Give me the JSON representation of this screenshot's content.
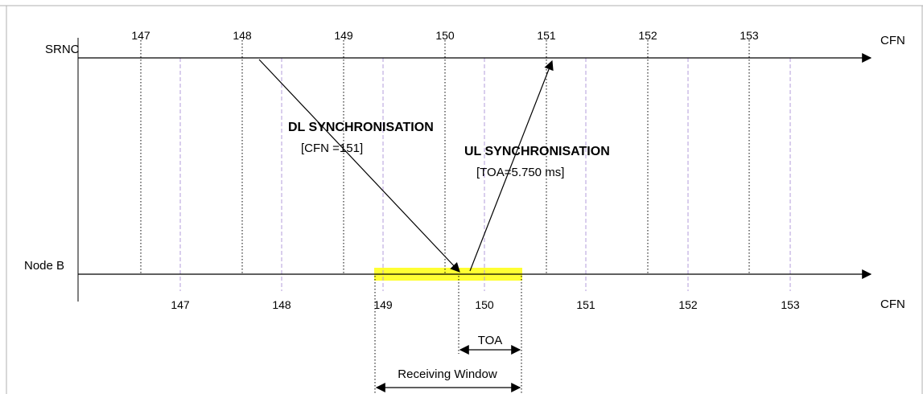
{
  "colors": {
    "line": "#000000",
    "dotted_line": "#000000",
    "dashed_line": "#b39ddb",
    "receiving_window": "#ffff33",
    "frame_border": "#b0b0b0"
  },
  "srnc": {
    "label": "SRNC",
    "axis_label": "CFN",
    "ticks": [
      "147",
      "148",
      "149",
      "150",
      "151",
      "152",
      "153"
    ]
  },
  "nodeb": {
    "label": "Node B",
    "axis_label": "CFN",
    "ticks": [
      "147",
      "148",
      "149",
      "150",
      "151",
      "152",
      "153"
    ]
  },
  "dl_sync": {
    "title": "DL SYNCHRONISATION",
    "detail": "[CFN =151]"
  },
  "ul_sync": {
    "title": "UL SYNCHRONISATION",
    "detail": "[TOA=5.750 ms]"
  },
  "toa_label": "TOA",
  "receiving_window_label": "Receiving Window"
}
